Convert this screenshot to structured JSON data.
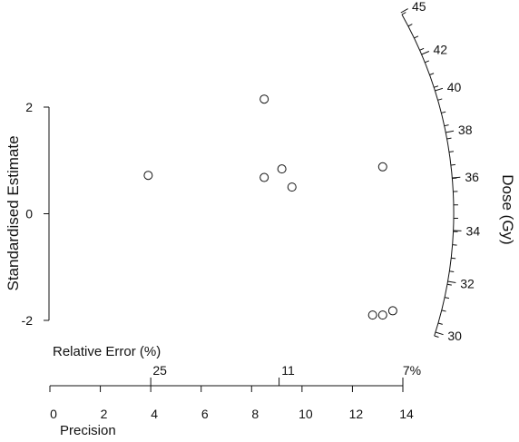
{
  "chart_data": {
    "type": "scatter",
    "title": "",
    "xlabel": "Precision",
    "ylabel": "Standardised Estimate",
    "xlim": [
      0,
      14
    ],
    "ylim": [
      -2,
      2
    ],
    "x_ticks": [
      0,
      2,
      4,
      6,
      8,
      10,
      12,
      14
    ],
    "y_ticks": [
      -2,
      0,
      2
    ],
    "relative_error": {
      "label": "Relative Error (%)",
      "ticks": [
        {
          "text": "25",
          "precision": 4
        },
        {
          "text": "11",
          "precision": 9.09
        },
        {
          "text": "7%",
          "precision": 14.29
        }
      ]
    },
    "radial_axis": {
      "label": "Dose (Gy)",
      "tick_labels": [
        "30",
        "32",
        "34",
        "36",
        "38",
        "40",
        "42",
        "45"
      ]
    },
    "points": [
      {
        "x": 3.9,
        "y": 0.72
      },
      {
        "x": 8.5,
        "y": 2.15
      },
      {
        "x": 8.5,
        "y": 0.68
      },
      {
        "x": 9.2,
        "y": 0.84
      },
      {
        "x": 9.6,
        "y": 0.5
      },
      {
        "x": 13.2,
        "y": 0.88
      },
      {
        "x": 12.8,
        "y": -1.9
      },
      {
        "x": 13.2,
        "y": -1.9
      },
      {
        "x": 13.6,
        "y": -1.82
      }
    ],
    "grid": false,
    "legend": "none"
  }
}
